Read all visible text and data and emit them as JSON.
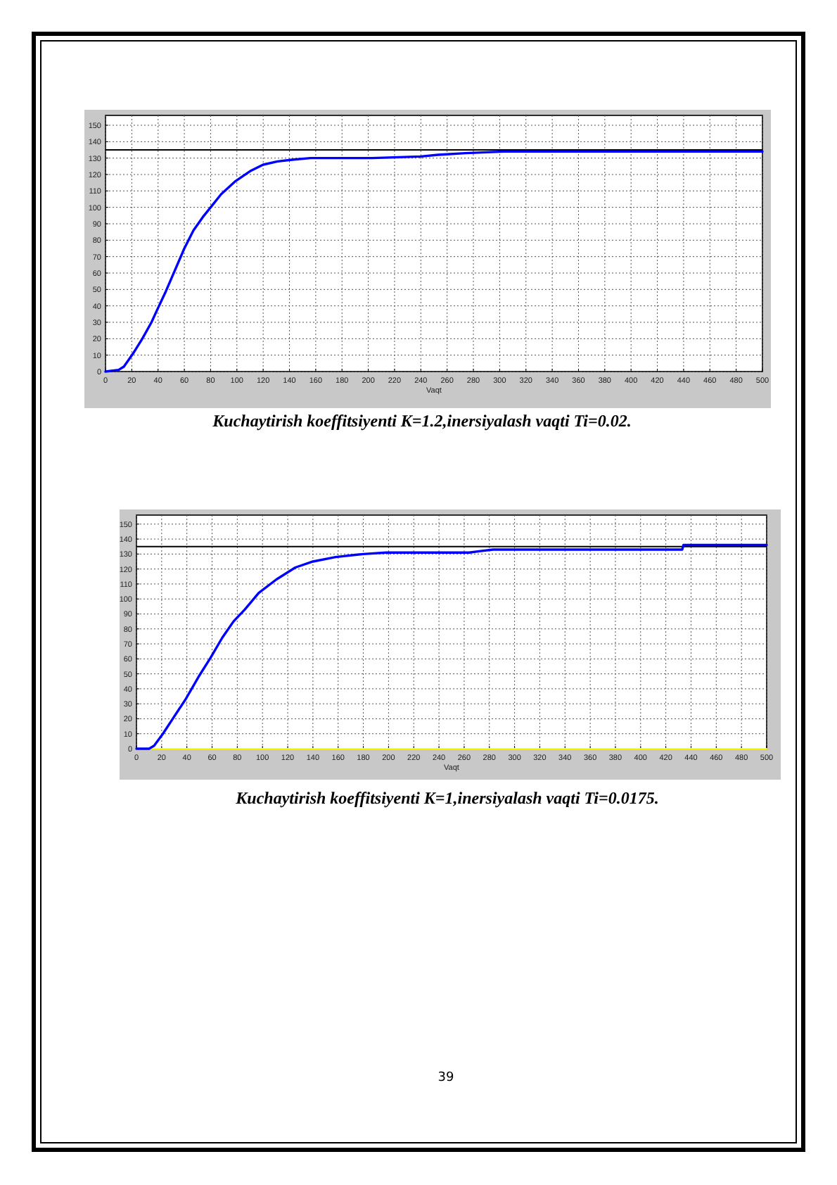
{
  "chart_data": [
    {
      "type": "line",
      "xlabel": "Vaqt",
      "annotations": [
        "Kuchaytirish koeffitsiyenti K=1.2,inersiyalash vaqti Ti=0.02."
      ],
      "series": [
        {
          "color": "#0000ff",
          "x": [
            0,
            10,
            14,
            21,
            28,
            35,
            39,
            46,
            53,
            60,
            67,
            74,
            81,
            88,
            99,
            110,
            120,
            131,
            142,
            156,
            203,
            240,
            253,
            274,
            303,
            355,
            500
          ],
          "values": [
            0,
            1,
            3,
            11,
            20,
            30,
            37,
            49,
            62,
            75,
            86,
            94,
            101,
            108,
            116,
            122,
            126,
            128,
            129,
            130,
            130,
            131,
            132,
            133,
            134,
            134,
            134
          ]
        }
      ],
      "xlim": [
        0,
        500
      ],
      "ylim": [
        0,
        156
      ],
      "xticks": [
        0,
        20,
        40,
        60,
        80,
        100,
        120,
        140,
        160,
        180,
        200,
        220,
        240,
        260,
        280,
        300,
        320,
        340,
        360,
        380,
        400,
        420,
        440,
        460,
        480,
        500
      ],
      "yticks": [
        0,
        10,
        20,
        30,
        40,
        50,
        60,
        70,
        80,
        90,
        100,
        110,
        120,
        130,
        140,
        150
      ],
      "grid": true,
      "ref_lines": [
        {
          "axis": "y",
          "value": 135,
          "color": "#000000"
        }
      ]
    },
    {
      "type": "line",
      "xlabel": "Vaqt",
      "annotations": [
        "Kuchaytirish koeffitsiyenti K=1,inersiyalash vaqti Ti=0.0175.",
        "39"
      ],
      "series": [
        {
          "color": "#ffff00",
          "x": [
            0,
            500
          ],
          "values": [
            0,
            0
          ]
        },
        {
          "color": "#0000ff",
          "x": [
            0,
            10,
            14,
            21,
            28,
            39,
            50,
            59,
            68,
            77,
            86,
            97,
            111,
            126,
            140,
            158,
            180,
            198,
            240,
            264,
            273,
            283,
            305,
            433,
            434,
            500
          ],
          "values": [
            0,
            0,
            2,
            10,
            19,
            33,
            49,
            61,
            74,
            85,
            93,
            104,
            113,
            121,
            125,
            128,
            130,
            131,
            131,
            131,
            132,
            133,
            133,
            133,
            136,
            136
          ]
        }
      ],
      "xlim": [
        0,
        500
      ],
      "ylim": [
        0,
        156
      ],
      "xticks": [
        0,
        20,
        40,
        60,
        80,
        100,
        120,
        140,
        160,
        180,
        200,
        220,
        240,
        260,
        280,
        300,
        320,
        340,
        360,
        380,
        400,
        420,
        440,
        460,
        480,
        500
      ],
      "yticks": [
        0,
        10,
        20,
        30,
        40,
        50,
        60,
        70,
        80,
        90,
        100,
        110,
        120,
        130,
        140,
        150
      ],
      "grid": true,
      "ref_lines": [
        {
          "axis": "y",
          "value": 135,
          "color": "#000000"
        }
      ]
    }
  ]
}
